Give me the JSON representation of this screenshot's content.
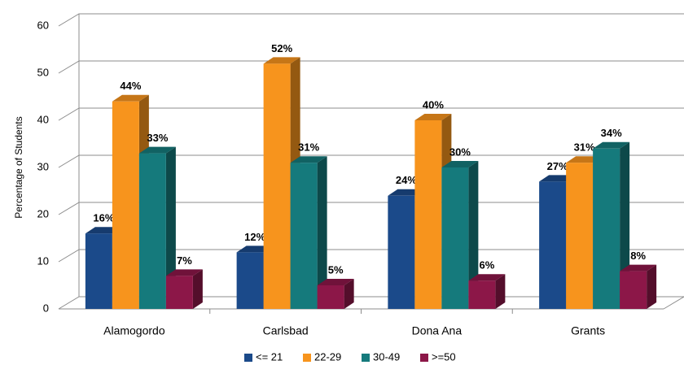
{
  "chart_data": {
    "type": "bar3d",
    "ylabel": "Percentage of Students",
    "categories": [
      "Alamogordo",
      "Carlsbad",
      "Dona Ana",
      "Grants"
    ],
    "series": [
      {
        "name": "<= 21",
        "color": "#1b4a8a",
        "values": [
          16,
          12,
          24,
          27
        ],
        "value_labels": [
          "16%",
          "12%",
          "24%",
          "27%"
        ]
      },
      {
        "name": "22-29",
        "color": "#f7941d",
        "values": [
          44,
          52,
          40,
          31
        ],
        "value_labels": [
          "44%",
          "52%",
          "40%",
          "31%"
        ]
      },
      {
        "name": "30-49",
        "color": "#157a7c",
        "values": [
          33,
          31,
          30,
          34
        ],
        "value_labels": [
          "33%",
          "31%",
          "30%",
          "34%"
        ]
      },
      {
        "name": ">=50",
        "color": "#8c1748",
        "values": [
          7,
          5,
          6,
          8
        ],
        "value_labels": [
          "7%",
          "5%",
          "6%",
          "8%"
        ]
      }
    ],
    "ylim": [
      0,
      60
    ],
    "yticks": [
      0,
      10,
      20,
      30,
      40,
      50,
      60
    ],
    "grid": true,
    "legend": "bottom"
  }
}
